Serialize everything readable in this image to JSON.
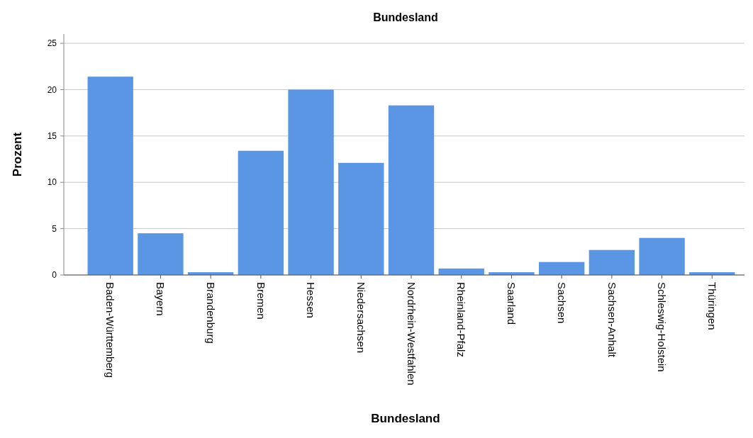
{
  "chart_data": {
    "type": "bar",
    "title": "Bundesland",
    "xlabel": "Bundesland",
    "ylabel": "Prozent",
    "categories": [
      "Baden-Württemberg",
      "Bayern",
      "Brandenburg",
      "Bremen",
      "Hessen",
      "Niedersachsen",
      "Nordrhein-Westfahlen",
      "Rheinland-Pfalz",
      "Saarland",
      "Sachsen",
      "Sachsen-Anhalt",
      "Schleswig-Holstein",
      "Thüringen"
    ],
    "values": [
      21.4,
      4.5,
      0.3,
      13.4,
      20.0,
      12.1,
      18.3,
      0.7,
      0.3,
      1.4,
      2.7,
      4.0,
      0.3
    ],
    "color": "#5a96e3",
    "ylim": [
      0,
      26
    ],
    "yticks": [
      0,
      5,
      10,
      15,
      20,
      25
    ],
    "grid": "y"
  }
}
